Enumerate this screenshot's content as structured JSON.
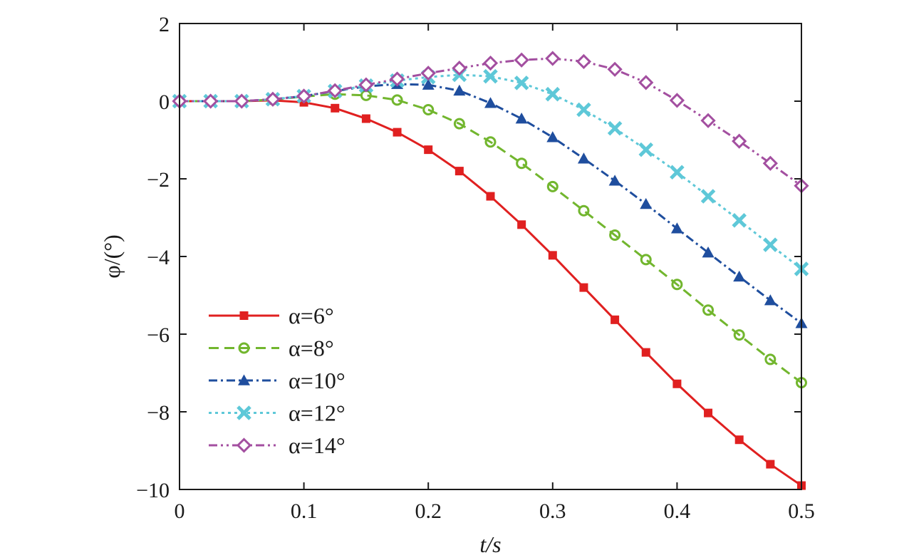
{
  "chart_data": {
    "type": "line",
    "title": "",
    "xlabel": "t/s",
    "ylabel": "φ/(°)",
    "xlim": [
      0,
      0.5
    ],
    "ylim": [
      -10,
      2
    ],
    "xticks": [
      0,
      0.1,
      0.2,
      0.3,
      0.4,
      0.5
    ],
    "xtick_labels": [
      "0",
      "0.1",
      "0.2",
      "0.3",
      "0.4",
      "0.5"
    ],
    "yticks": [
      2,
      0,
      -2,
      -4,
      -6,
      -8,
      -10
    ],
    "ytick_labels": [
      "2",
      "0",
      "−2",
      "−4",
      "−6",
      "−8",
      "−10"
    ],
    "grid": false,
    "legend_position": "bottom-left",
    "x": [
      0,
      0.025,
      0.05,
      0.075,
      0.1,
      0.125,
      0.15,
      0.175,
      0.2,
      0.225,
      0.25,
      0.275,
      0.3,
      0.325,
      0.35,
      0.375,
      0.4,
      0.425,
      0.45,
      0.475,
      0.5
    ],
    "series": [
      {
        "name": "α=6°",
        "color": "#e02020",
        "dash": "solid",
        "marker": "square",
        "values": [
          0,
          0,
          0,
          0.02,
          -0.03,
          -0.18,
          -0.45,
          -0.8,
          -1.25,
          -1.8,
          -2.45,
          -3.18,
          -3.97,
          -4.8,
          -5.63,
          -6.47,
          -7.28,
          -8.03,
          -8.72,
          -9.35,
          -9.9
        ]
      },
      {
        "name": "α=8°",
        "color": "#72b62e",
        "dash": "dashed",
        "marker": "circle",
        "values": [
          0,
          0,
          0,
          0.04,
          0.12,
          0.18,
          0.15,
          0.03,
          -0.22,
          -0.58,
          -1.05,
          -1.6,
          -2.2,
          -2.82,
          -3.45,
          -4.08,
          -4.72,
          -5.38,
          -6.02,
          -6.65,
          -7.25
        ]
      },
      {
        "name": "α=10°",
        "color": "#1f4e9e",
        "dash": "dashdot",
        "marker": "triangle",
        "values": [
          0,
          0,
          0,
          0.05,
          0.13,
          0.26,
          0.38,
          0.44,
          0.42,
          0.27,
          -0.05,
          -0.45,
          -0.93,
          -1.48,
          -2.05,
          -2.65,
          -3.28,
          -3.9,
          -4.52,
          -5.13,
          -5.72
        ]
      },
      {
        "name": "α=12°",
        "color": "#5ec8d8",
        "dash": "dotted",
        "marker": "x",
        "values": [
          0,
          0,
          0,
          0.05,
          0.13,
          0.26,
          0.4,
          0.53,
          0.62,
          0.68,
          0.64,
          0.47,
          0.18,
          -0.22,
          -0.7,
          -1.25,
          -1.83,
          -2.45,
          -3.07,
          -3.7,
          -4.32
        ]
      },
      {
        "name": "α=14°",
        "color": "#a34fa0",
        "dash": "dashdotdot",
        "marker": "diamond",
        "values": [
          0,
          0,
          0,
          0.05,
          0.13,
          0.27,
          0.42,
          0.57,
          0.72,
          0.85,
          0.98,
          1.06,
          1.1,
          1.02,
          0.82,
          0.48,
          0.02,
          -0.5,
          -1.03,
          -1.6,
          -2.18
        ]
      }
    ]
  }
}
